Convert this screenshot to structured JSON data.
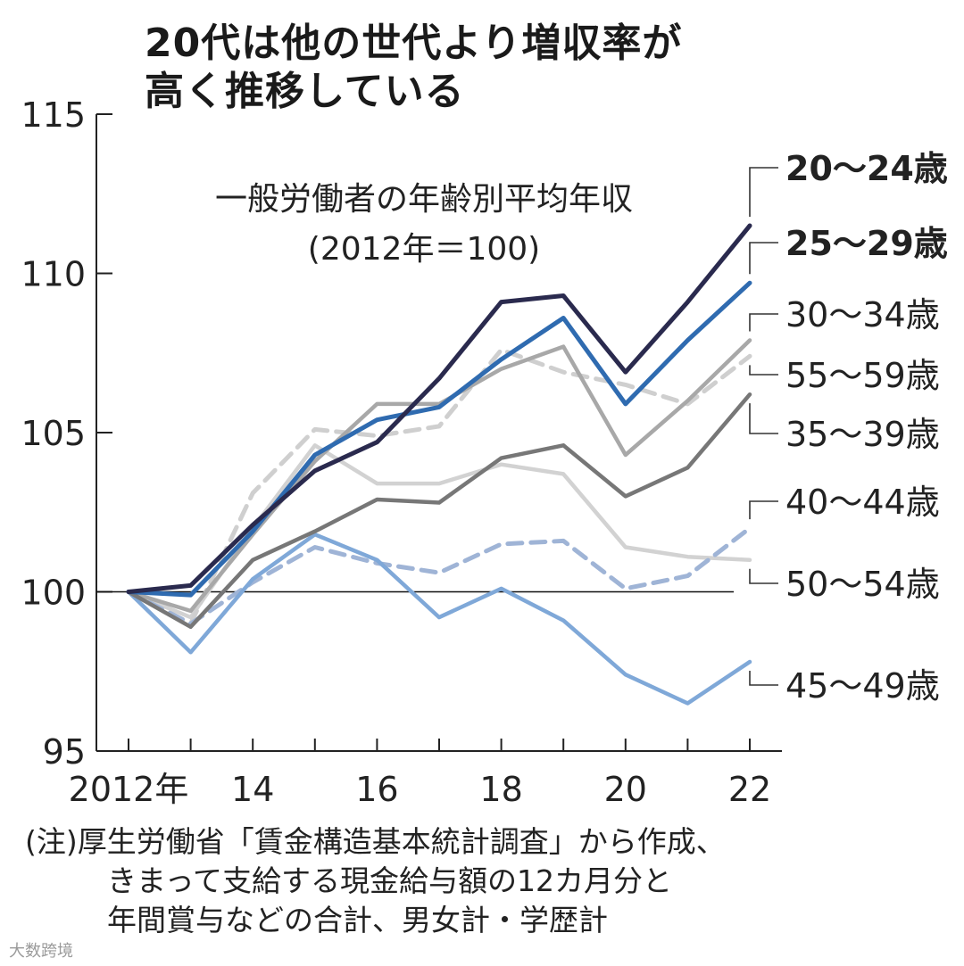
{
  "title_lines": [
    "20代は他の世代より増収率が",
    "高く推移している"
  ],
  "subtitle_lines": [
    "一般労働者の年齢別平均年収",
    "(2012年＝100)"
  ],
  "note_lines": [
    "(注)厚生労働省「賃金構造基本統計調査」から作成、",
    "きまって支給する現金給与額の12カ月分と",
    "年間賞与などの合計、男女計・学歴計"
  ],
  "watermark": "大数跨境",
  "chart_data": {
    "type": "line",
    "x": [
      2012,
      2013,
      2014,
      2015,
      2016,
      2017,
      2018,
      2019,
      2020,
      2021,
      2022
    ],
    "x_tick_values": [
      2012,
      2014,
      2016,
      2018,
      2020,
      2022
    ],
    "x_tick_labels": [
      "2012年",
      "14",
      "16",
      "18",
      "20",
      "22"
    ],
    "ylim": [
      95,
      115
    ],
    "y_ticks": [
      95,
      100,
      105,
      110,
      115
    ],
    "baseline": 100,
    "series": [
      {
        "name": "20〜24歳",
        "color": "#2a2a4e",
        "dashed": false,
        "bold": true,
        "values": [
          100,
          100.2,
          102.1,
          103.8,
          104.7,
          106.7,
          109.1,
          109.3,
          106.9,
          109.1,
          111.5
        ]
      },
      {
        "name": "25〜29歳",
        "color": "#2f6bb0",
        "dashed": false,
        "bold": true,
        "values": [
          100,
          99.9,
          101.9,
          104.3,
          105.4,
          105.8,
          107.3,
          108.6,
          105.9,
          107.9,
          109.7
        ]
      },
      {
        "name": "30〜34歳",
        "color": "#a8a8a8",
        "dashed": false,
        "bold": false,
        "values": [
          100,
          99.4,
          101.8,
          104.1,
          105.9,
          105.9,
          107.0,
          107.7,
          104.3,
          106.0,
          107.9
        ]
      },
      {
        "name": "55〜59歳",
        "color": "#cfcfcf",
        "dashed": true,
        "bold": false,
        "values": [
          100,
          99.0,
          103.1,
          105.1,
          104.9,
          105.2,
          107.6,
          106.9,
          106.5,
          105.9,
          107.4
        ]
      },
      {
        "name": "35〜39歳",
        "color": "#777777",
        "dashed": false,
        "bold": false,
        "values": [
          100,
          98.9,
          101.0,
          101.9,
          102.9,
          102.8,
          104.2,
          104.6,
          103.0,
          103.9,
          106.2
        ]
      },
      {
        "name": "40〜44歳",
        "color": "#9fb4d6",
        "dashed": true,
        "bold": false,
        "values": [
          100,
          99.0,
          100.3,
          101.4,
          100.9,
          100.6,
          101.5,
          101.6,
          100.1,
          100.5,
          102.0
        ]
      },
      {
        "name": "50〜54歳",
        "color": "#d2d2d2",
        "dashed": false,
        "bold": false,
        "values": [
          100,
          99.2,
          102.0,
          104.6,
          103.4,
          103.4,
          104.0,
          103.7,
          101.4,
          101.1,
          101.0
        ]
      },
      {
        "name": "45〜49歳",
        "color": "#7fa8d8",
        "dashed": false,
        "bold": false,
        "values": [
          100,
          98.1,
          100.4,
          101.8,
          101.0,
          99.2,
          100.1,
          99.1,
          97.4,
          96.5,
          97.8
        ]
      }
    ]
  }
}
